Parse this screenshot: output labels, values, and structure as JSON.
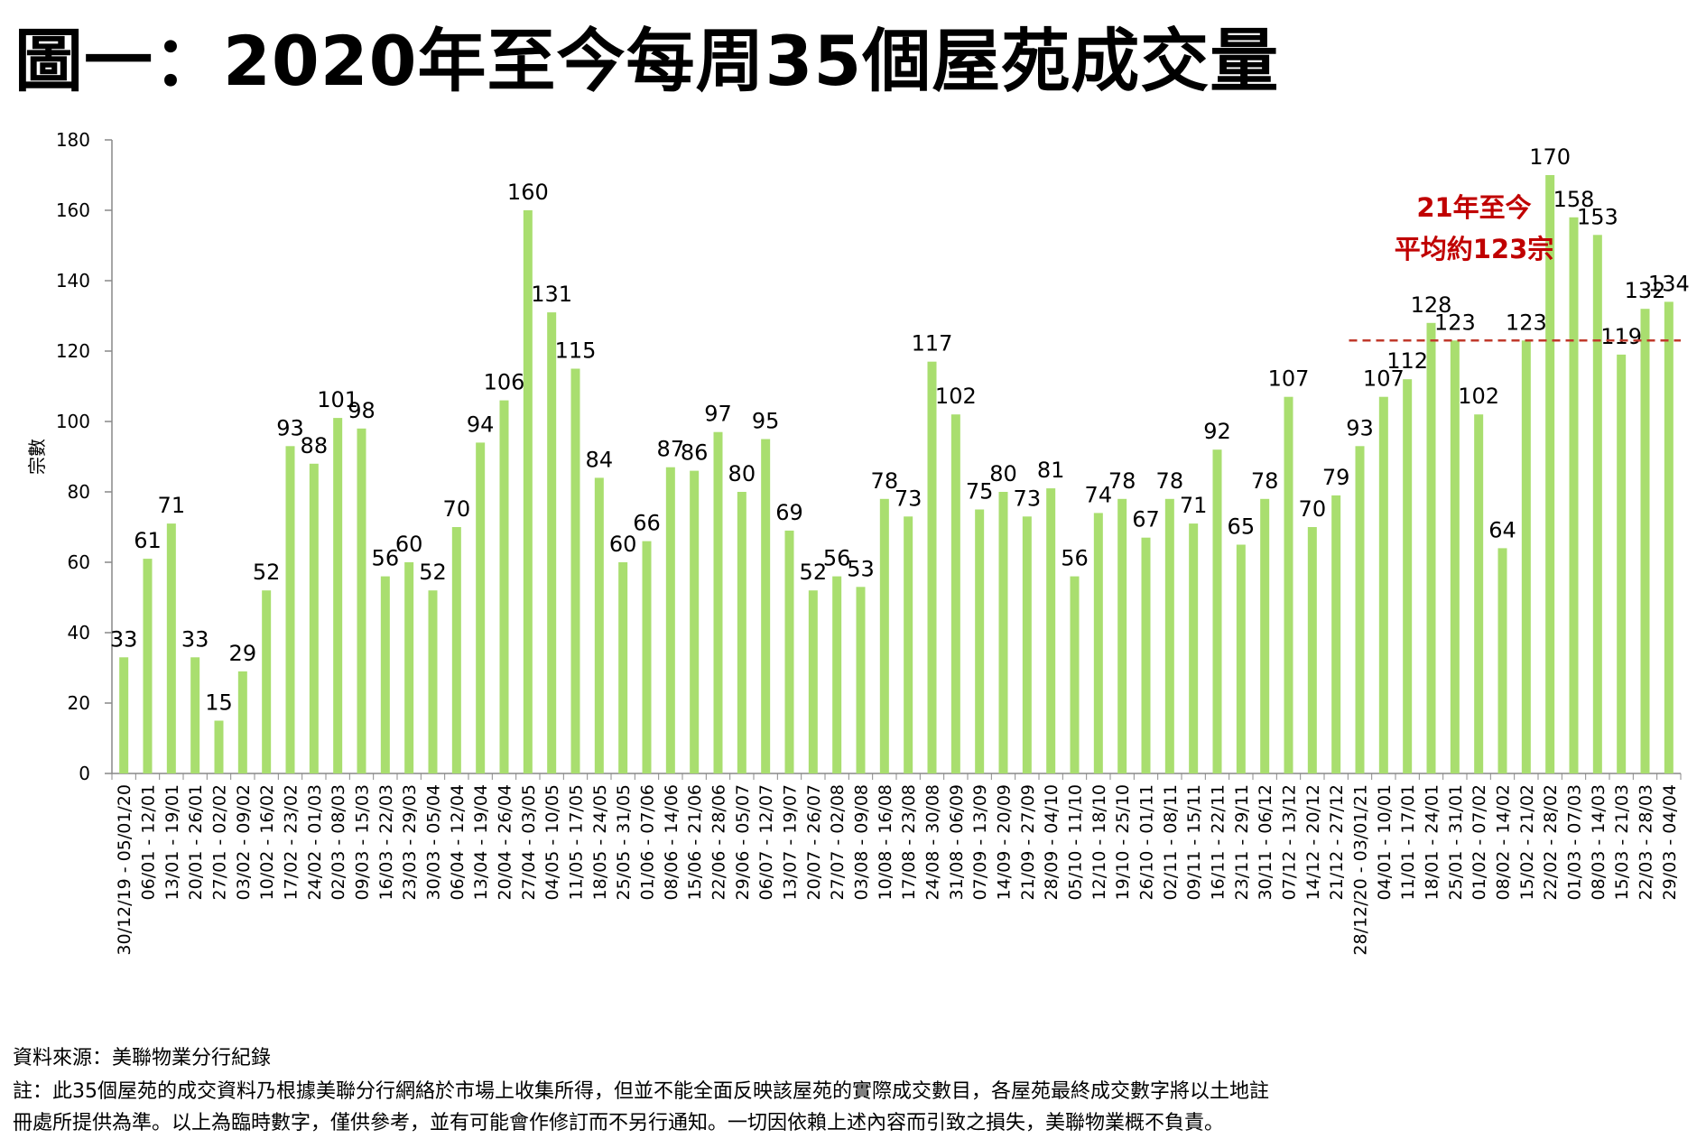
{
  "title": "圖一：2020年至今每周35個屋苑成交量",
  "source": "資料來源：美聯物業分行紀錄",
  "note_line1": "註：此35個屋苑的成交資料乃根據美聯分行網絡於市場上收集所得，但並不能全面反映該屋苑的實際成交數目，各屋苑最終成交數字將以土地註",
  "note_line2": "冊處所提供為準。以上為臨時數字，僅供參考，並有可能會作修訂而不另行通知。一切因依賴上述內容而引致之損失，美聯物業概不負責。",
  "colors": {
    "bar": "#a9de6f",
    "avg_line": "#c0392b",
    "annotation": "#c00000",
    "axis": "#888888"
  },
  "chart_data": {
    "type": "bar",
    "ylabel": "宗數",
    "ylim": [
      0,
      180
    ],
    "yticks": [
      0,
      20,
      40,
      60,
      80,
      100,
      120,
      140,
      160,
      180
    ],
    "categories": [
      "30/12/19 - 05/01/20",
      "06/01 - 12/01",
      "13/01 - 19/01",
      "20/01 - 26/01",
      "27/01 - 02/02",
      "03/02 - 09/02",
      "10/02 - 16/02",
      "17/02 - 23/02",
      "24/02 - 01/03",
      "02/03 - 08/03",
      "09/03 - 15/03",
      "16/03 - 22/03",
      "23/03 - 29/03",
      "30/03 - 05/04",
      "06/04 - 12/04",
      "13/04 - 19/04",
      "20/04 - 26/04",
      "27/04 - 03/05",
      "04/05 - 10/05",
      "11/05 - 17/05",
      "18/05 - 24/05",
      "25/05 - 31/05",
      "01/06 - 07/06",
      "08/06 - 14/06",
      "15/06 - 21/06",
      "22/06 - 28/06",
      "29/06 - 05/07",
      "06/07 - 12/07",
      "13/07 - 19/07",
      "20/07 - 26/07",
      "27/07 - 02/08",
      "03/08 - 09/08",
      "10/08 - 16/08",
      "17/08 - 23/08",
      "24/08 - 30/08",
      "31/08 - 06/09",
      "07/09 - 13/09",
      "14/09 - 20/09",
      "21/09 - 27/09",
      "28/09 - 04/10",
      "05/10 - 11/10",
      "12/10 - 18/10",
      "19/10 - 25/10",
      "26/10 - 01/11",
      "02/11 - 08/11",
      "09/11 - 15/11",
      "16/11 - 22/11",
      "23/11 - 29/11",
      "30/11 - 06/12",
      "07/12 - 13/12",
      "14/12 - 20/12",
      "21/12 - 27/12",
      "28/12/20 - 03/01/21",
      "04/01 - 10/01",
      "11/01 - 17/01",
      "18/01 - 24/01",
      "25/01 - 31/01",
      "01/02 - 07/02",
      "08/02 - 14/02",
      "15/02 - 21/02",
      "22/02 - 28/02",
      "01/03 - 07/03",
      "08/03 - 14/03",
      "15/03 - 21/03",
      "22/03 - 28/03",
      "29/03 - 04/04"
    ],
    "values": [
      33,
      61,
      71,
      33,
      15,
      29,
      52,
      93,
      88,
      101,
      98,
      56,
      60,
      52,
      70,
      94,
      106,
      160,
      131,
      115,
      84,
      60,
      66,
      87,
      86,
      97,
      80,
      95,
      69,
      52,
      56,
      53,
      78,
      73,
      117,
      102,
      75,
      80,
      73,
      81,
      56,
      74,
      78,
      67,
      78,
      71,
      92,
      65,
      78,
      107,
      70,
      79,
      93,
      107,
      112,
      128,
      123,
      102,
      64,
      123,
      170,
      158,
      153,
      119,
      132,
      134
    ],
    "average": {
      "value": 123,
      "start_index": 52,
      "label_line1": "21年至今",
      "label_line2": "平均約123宗"
    }
  }
}
